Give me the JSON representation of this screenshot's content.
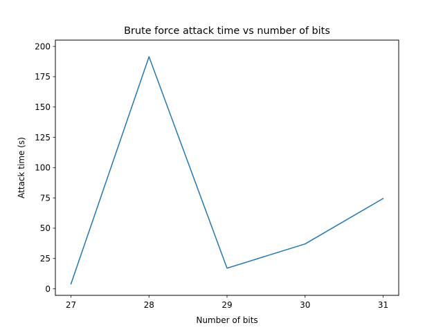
{
  "chart_data": {
    "type": "line",
    "title": "Brute force attack time vs number of bits",
    "xlabel": "Number of bits",
    "ylabel": "Attack time (s)",
    "x": [
      27,
      28,
      29,
      30,
      31
    ],
    "series": [
      {
        "values": [
          4,
          191.5,
          17,
          37,
          74.5
        ]
      }
    ],
    "xticks": [
      "27",
      "28",
      "29",
      "30",
      "31"
    ],
    "yticks": [
      "0",
      "25",
      "50",
      "75",
      "100",
      "125",
      "150",
      "175",
      "200"
    ],
    "xlim": [
      26.8,
      31.2
    ],
    "ylim": [
      -5.4,
      205.2
    ],
    "grid": false,
    "line_color": "#1f77b4"
  }
}
